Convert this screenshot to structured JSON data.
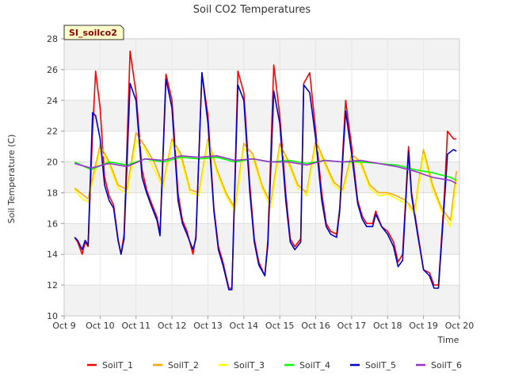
{
  "chart_data": {
    "type": "line",
    "title": "Soil CO2 Temperatures",
    "xlabel": "Time",
    "ylabel": "Soil Temperature (C)",
    "site_label": "SI_soilco2",
    "ylim": [
      10,
      28
    ],
    "yticks": [
      10,
      12,
      14,
      16,
      18,
      20,
      22,
      24,
      26,
      28
    ],
    "xlim": [
      "2016-10-09",
      "2016-10-20"
    ],
    "xticks": [
      {
        "date": "2016-10-09",
        "label": "Oct 9"
      },
      {
        "date": "2016-10-10",
        "label": "Oct 10"
      },
      {
        "date": "2016-10-11",
        "label": "Oct 11"
      },
      {
        "date": "2016-10-12",
        "label": "Oct 12"
      },
      {
        "date": "2016-10-13",
        "label": "Oct 13"
      },
      {
        "date": "2016-10-14",
        "label": "Oct 14"
      },
      {
        "date": "2016-10-15",
        "label": "Oct 15"
      },
      {
        "date": "2016-10-16",
        "label": "Oct 16"
      },
      {
        "date": "2016-10-17",
        "label": "Oct 17"
      },
      {
        "date": "2016-10-18",
        "label": "Oct 18"
      },
      {
        "date": "2016-10-19",
        "label": "Oct 19"
      },
      {
        "date": "2016-10-20",
        "label": "Oct 20"
      }
    ],
    "grid": true,
    "legend_position": "bottom",
    "series": [
      {
        "name": "SoilT_1",
        "color": "#ff0000",
        "x": [
          "2016-10-09 07:00",
          "2016-10-09 09:00",
          "2016-10-09 12:00",
          "2016-10-09 14:00",
          "2016-10-09 16:00",
          "2016-10-09 19:00",
          "2016-10-09 21:00",
          "2016-10-10 00:00",
          "2016-10-10 03:00",
          "2016-10-10 06:00",
          "2016-10-10 09:00",
          "2016-10-10 12:00",
          "2016-10-10 14:00",
          "2016-10-10 16:00",
          "2016-10-10 20:00",
          "2016-10-11 00:00",
          "2016-10-11 04:00",
          "2016-10-11 07:00",
          "2016-10-11 10:00",
          "2016-10-11 14:00",
          "2016-10-11 16:00",
          "2016-10-11 20:00",
          "2016-10-12 00:00",
          "2016-10-12 04:00",
          "2016-10-12 07:00",
          "2016-10-12 10:00",
          "2016-10-12 14:00",
          "2016-10-12 16:00",
          "2016-10-12 20:00",
          "2016-10-13 00:00",
          "2016-10-13 04:00",
          "2016-10-13 07:00",
          "2016-10-13 10:00",
          "2016-10-13 14:00",
          "2016-10-13 16:00",
          "2016-10-13 20:00",
          "2016-10-14 00:00",
          "2016-10-14 04:00",
          "2016-10-14 07:00",
          "2016-10-14 10:00",
          "2016-10-14 14:00",
          "2016-10-14 16:00",
          "2016-10-14 20:00",
          "2016-10-15 00:00",
          "2016-10-15 04:00",
          "2016-10-15 07:00",
          "2016-10-15 10:00",
          "2016-10-15 14:00",
          "2016-10-15 16:00",
          "2016-10-15 20:00",
          "2016-10-16 00:00",
          "2016-10-16 04:00",
          "2016-10-16 07:00",
          "2016-10-16 10:00",
          "2016-10-16 14:00",
          "2016-10-16 16:00",
          "2016-10-16 20:00",
          "2016-10-17 00:00",
          "2016-10-17 04:00",
          "2016-10-17 07:00",
          "2016-10-17 10:00",
          "2016-10-17 14:00",
          "2016-10-17 16:00",
          "2016-10-17 20:00",
          "2016-10-18 00:00",
          "2016-10-18 04:00",
          "2016-10-18 07:00",
          "2016-10-18 10:00",
          "2016-10-18 14:00",
          "2016-10-18 16:00",
          "2016-10-18 20:00",
          "2016-10-19 00:00",
          "2016-10-19 04:00",
          "2016-10-19 07:00",
          "2016-10-19 10:00",
          "2016-10-19 14:00",
          "2016-10-19 16:00",
          "2016-10-19 20:00",
          "2016-10-19 22:00"
        ],
        "y": [
          15.1,
          14.8,
          14.0,
          14.8,
          14.5,
          22.0,
          25.9,
          23.5,
          19.0,
          17.8,
          17.2,
          15.0,
          14.0,
          15.3,
          27.2,
          24.5,
          19.5,
          18.2,
          17.4,
          16.4,
          15.4,
          25.7,
          24.0,
          18.0,
          16.2,
          15.5,
          14.0,
          15.2,
          25.8,
          23.0,
          17.0,
          14.5,
          13.5,
          11.8,
          11.8,
          25.9,
          24.5,
          18.5,
          15.0,
          13.5,
          12.6,
          14.9,
          26.3,
          23.0,
          18.0,
          15.0,
          14.5,
          15.0,
          25.1,
          25.8,
          22.0,
          18.0,
          16.0,
          15.5,
          15.3,
          17.0,
          24.0,
          21.0,
          17.5,
          16.5,
          16.0,
          16.0,
          16.8,
          15.8,
          15.5,
          14.8,
          13.5,
          14.0,
          21.0,
          18.0,
          15.5,
          13.0,
          12.8,
          12.0,
          12.0,
          18.0,
          22.0,
          21.5,
          21.5
        ]
      },
      {
        "name": "SoilT_2",
        "color": "#ffa500",
        "x": [
          "2016-10-09 07:00",
          "2016-10-09 12:00",
          "2016-10-09 16:00",
          "2016-10-10 00:00",
          "2016-10-10 06:00",
          "2016-10-10 12:00",
          "2016-10-10 18:00",
          "2016-10-11 00:00",
          "2016-10-11 06:00",
          "2016-10-11 12:00",
          "2016-10-11 18:00",
          "2016-10-12 00:00",
          "2016-10-12 06:00",
          "2016-10-12 12:00",
          "2016-10-12 18:00",
          "2016-10-13 00:00",
          "2016-10-13 06:00",
          "2016-10-13 12:00",
          "2016-10-13 18:00",
          "2016-10-14 00:00",
          "2016-10-14 06:00",
          "2016-10-14 12:00",
          "2016-10-14 18:00",
          "2016-10-15 00:00",
          "2016-10-15 06:00",
          "2016-10-15 12:00",
          "2016-10-15 18:00",
          "2016-10-16 00:00",
          "2016-10-16 06:00",
          "2016-10-16 12:00",
          "2016-10-16 18:00",
          "2016-10-17 00:00",
          "2016-10-17 06:00",
          "2016-10-17 12:00",
          "2016-10-17 18:00",
          "2016-10-18 00:00",
          "2016-10-18 06:00",
          "2016-10-18 12:00",
          "2016-10-18 18:00",
          "2016-10-19 00:00",
          "2016-10-19 06:00",
          "2016-10-19 12:00",
          "2016-10-19 18:00",
          "2016-10-19 22:00"
        ],
        "y": [
          18.3,
          17.9,
          17.6,
          21.1,
          20.0,
          18.5,
          18.2,
          21.9,
          21.0,
          20.0,
          18.5,
          21.5,
          20.5,
          18.2,
          18.0,
          21.5,
          19.5,
          18.0,
          17.0,
          21.2,
          20.5,
          18.5,
          17.3,
          21.2,
          20.0,
          18.5,
          18.0,
          21.4,
          20.0,
          18.7,
          18.2,
          20.5,
          20.0,
          18.5,
          18.0,
          18.0,
          17.8,
          17.5,
          16.8,
          20.8,
          18.5,
          17.0,
          16.2,
          19.4
        ]
      },
      {
        "name": "SoilT_3",
        "color": "#ffff00",
        "x": [
          "2016-10-09 07:00",
          "2016-10-09 12:00",
          "2016-10-09 16:00",
          "2016-10-10 00:00",
          "2016-10-10 06:00",
          "2016-10-10 12:00",
          "2016-10-10 18:00",
          "2016-10-11 00:00",
          "2016-10-11 06:00",
          "2016-10-11 12:00",
          "2016-10-11 18:00",
          "2016-10-12 00:00",
          "2016-10-12 06:00",
          "2016-10-12 12:00",
          "2016-10-12 18:00",
          "2016-10-13 00:00",
          "2016-10-13 06:00",
          "2016-10-13 12:00",
          "2016-10-13 18:00",
          "2016-10-14 00:00",
          "2016-10-14 06:00",
          "2016-10-14 12:00",
          "2016-10-14 18:00",
          "2016-10-15 00:00",
          "2016-10-15 06:00",
          "2016-10-15 12:00",
          "2016-10-15 18:00",
          "2016-10-16 00:00",
          "2016-10-16 06:00",
          "2016-10-16 12:00",
          "2016-10-16 18:00",
          "2016-10-17 00:00",
          "2016-10-17 06:00",
          "2016-10-17 12:00",
          "2016-10-17 18:00",
          "2016-10-18 00:00",
          "2016-10-18 06:00",
          "2016-10-18 12:00",
          "2016-10-18 18:00",
          "2016-10-19 00:00",
          "2016-10-19 06:00",
          "2016-10-19 12:00",
          "2016-10-19 18:00",
          "2016-10-19 22:00"
        ],
        "y": [
          18.2,
          17.6,
          17.4,
          20.8,
          19.8,
          18.3,
          17.9,
          21.4,
          20.8,
          19.5,
          18.3,
          21.3,
          20.2,
          18.0,
          17.8,
          21.3,
          19.3,
          17.8,
          16.8,
          20.9,
          20.2,
          18.3,
          17.0,
          20.9,
          19.8,
          18.3,
          17.8,
          21.1,
          19.8,
          18.5,
          18.0,
          20.3,
          19.8,
          18.3,
          17.8,
          17.9,
          17.6,
          17.3,
          16.6,
          20.5,
          18.2,
          16.8,
          15.8,
          18.8
        ]
      },
      {
        "name": "SoilT_4",
        "color": "#00ff00",
        "x": [
          "2016-10-09 07:00",
          "2016-10-09 18:00",
          "2016-10-10 06:00",
          "2016-10-10 18:00",
          "2016-10-11 06:00",
          "2016-10-11 18:00",
          "2016-10-12 06:00",
          "2016-10-12 18:00",
          "2016-10-13 06:00",
          "2016-10-13 18:00",
          "2016-10-14 06:00",
          "2016-10-14 18:00",
          "2016-10-15 06:00",
          "2016-10-15 18:00",
          "2016-10-16 06:00",
          "2016-10-16 18:00",
          "2016-10-17 06:00",
          "2016-10-17 18:00",
          "2016-10-18 06:00",
          "2016-10-18 18:00",
          "2016-10-19 06:00",
          "2016-10-19 18:00",
          "2016-10-19 22:00"
        ],
        "y": [
          20.0,
          19.5,
          20.0,
          19.8,
          20.2,
          20.0,
          20.3,
          20.2,
          20.3,
          20.0,
          20.2,
          20.0,
          20.1,
          19.9,
          20.1,
          20.0,
          20.0,
          19.9,
          19.8,
          19.5,
          19.3,
          19.0,
          18.8
        ]
      },
      {
        "name": "SoilT_5",
        "color": "#0000cd",
        "x": [
          "2016-10-09 07:00",
          "2016-10-09 09:00",
          "2016-10-09 12:00",
          "2016-10-09 14:00",
          "2016-10-09 16:00",
          "2016-10-09 19:00",
          "2016-10-09 21:00",
          "2016-10-10 00:00",
          "2016-10-10 03:00",
          "2016-10-10 06:00",
          "2016-10-10 09:00",
          "2016-10-10 12:00",
          "2016-10-10 14:00",
          "2016-10-10 16:00",
          "2016-10-10 20:00",
          "2016-10-11 00:00",
          "2016-10-11 04:00",
          "2016-10-11 07:00",
          "2016-10-11 10:00",
          "2016-10-11 14:00",
          "2016-10-11 16:00",
          "2016-10-11 20:00",
          "2016-10-12 00:00",
          "2016-10-12 04:00",
          "2016-10-12 07:00",
          "2016-10-12 10:00",
          "2016-10-12 14:00",
          "2016-10-12 16:00",
          "2016-10-12 20:00",
          "2016-10-13 00:00",
          "2016-10-13 04:00",
          "2016-10-13 07:00",
          "2016-10-13 10:00",
          "2016-10-13 14:00",
          "2016-10-13 16:00",
          "2016-10-13 20:00",
          "2016-10-14 00:00",
          "2016-10-14 04:00",
          "2016-10-14 07:00",
          "2016-10-14 10:00",
          "2016-10-14 14:00",
          "2016-10-14 16:00",
          "2016-10-14 20:00",
          "2016-10-15 00:00",
          "2016-10-15 04:00",
          "2016-10-15 07:00",
          "2016-10-15 10:00",
          "2016-10-15 14:00",
          "2016-10-15 16:00",
          "2016-10-15 20:00",
          "2016-10-16 00:00",
          "2016-10-16 04:00",
          "2016-10-16 07:00",
          "2016-10-16 10:00",
          "2016-10-16 14:00",
          "2016-10-16 16:00",
          "2016-10-16 20:00",
          "2016-10-17 00:00",
          "2016-10-17 04:00",
          "2016-10-17 07:00",
          "2016-10-17 10:00",
          "2016-10-17 14:00",
          "2016-10-17 16:00",
          "2016-10-17 20:00",
          "2016-10-18 00:00",
          "2016-10-18 04:00",
          "2016-10-18 07:00",
          "2016-10-18 10:00",
          "2016-10-18 14:00",
          "2016-10-18 16:00",
          "2016-10-18 20:00",
          "2016-10-19 00:00",
          "2016-10-19 04:00",
          "2016-10-19 07:00",
          "2016-10-19 10:00",
          "2016-10-19 14:00",
          "2016-10-19 16:00",
          "2016-10-19 20:00",
          "2016-10-19 22:00"
        ],
        "y": [
          15.1,
          14.9,
          14.3,
          14.9,
          14.6,
          23.2,
          23.0,
          21.5,
          18.5,
          17.5,
          17.0,
          14.9,
          14.0,
          15.0,
          25.1,
          24.0,
          19.0,
          18.0,
          17.2,
          16.2,
          15.2,
          25.4,
          23.5,
          17.5,
          16.0,
          15.3,
          14.3,
          15.0,
          25.8,
          22.5,
          16.8,
          14.3,
          13.3,
          11.7,
          11.7,
          25.0,
          24.0,
          18.0,
          14.8,
          13.3,
          12.6,
          14.6,
          24.6,
          22.5,
          17.5,
          14.8,
          14.3,
          14.8,
          25.0,
          24.5,
          21.5,
          17.5,
          15.8,
          15.3,
          15.1,
          16.8,
          23.3,
          20.5,
          17.3,
          16.3,
          15.8,
          15.8,
          16.6,
          15.8,
          15.3,
          14.5,
          13.2,
          13.6,
          20.7,
          17.8,
          15.3,
          13.0,
          12.6,
          11.8,
          11.8,
          17.5,
          20.5,
          20.8,
          20.7
        ]
      },
      {
        "name": "SoilT_6",
        "color": "#9932cc",
        "x": [
          "2016-10-09 07:00",
          "2016-10-09 18:00",
          "2016-10-10 06:00",
          "2016-10-10 18:00",
          "2016-10-11 06:00",
          "2016-10-11 18:00",
          "2016-10-12 06:00",
          "2016-10-12 18:00",
          "2016-10-13 06:00",
          "2016-10-13 18:00",
          "2016-10-14 06:00",
          "2016-10-14 18:00",
          "2016-10-15 06:00",
          "2016-10-15 18:00",
          "2016-10-16 06:00",
          "2016-10-16 18:00",
          "2016-10-17 06:00",
          "2016-10-17 18:00",
          "2016-10-18 06:00",
          "2016-10-18 18:00",
          "2016-10-19 06:00",
          "2016-10-19 18:00",
          "2016-10-19 22:00"
        ],
        "y": [
          19.9,
          19.6,
          19.9,
          19.7,
          20.2,
          20.1,
          20.4,
          20.3,
          20.4,
          20.1,
          20.2,
          20.0,
          20.0,
          19.8,
          20.1,
          20.0,
          20.1,
          19.9,
          19.7,
          19.4,
          19.0,
          18.8,
          18.6
        ]
      }
    ]
  }
}
